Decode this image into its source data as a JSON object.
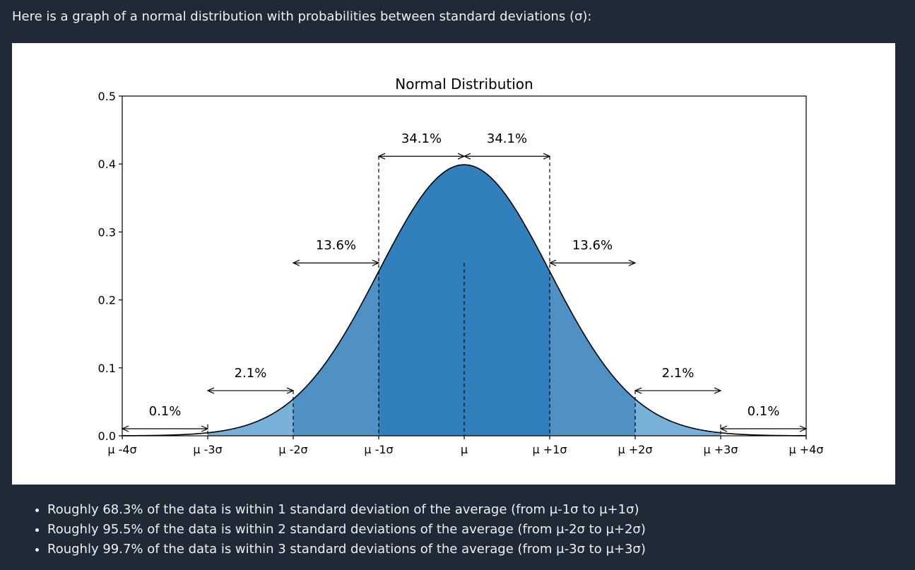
{
  "intro": {
    "text": "Here is a graph of a normal distribution with probabilities between standard deviations (σ):"
  },
  "chart_data": {
    "type": "area",
    "title": "Normal Distribution",
    "xlabel": "",
    "ylabel": "",
    "distribution": "standard normal density",
    "xlim": [
      -4,
      4
    ],
    "ylim": [
      0,
      0.5
    ],
    "y_ticks": [
      0.0,
      0.1,
      0.2,
      0.3,
      0.4,
      0.5
    ],
    "y_tick_labels": [
      "0.0",
      "0.1",
      "0.2",
      "0.3",
      "0.4",
      "0.5"
    ],
    "x_ticks": [
      -4,
      -3,
      -2,
      -1,
      0,
      1,
      2,
      3,
      4
    ],
    "x_tick_labels": [
      "μ -4σ",
      "μ -3σ",
      "μ -2σ",
      "μ -1σ",
      "μ",
      "μ +1σ",
      "μ +2σ",
      "μ +3σ",
      "μ +4σ"
    ],
    "grid": false,
    "legend": "none",
    "regions": [
      {
        "from": -3,
        "to": -2,
        "label": "2.1%",
        "color": "#79b0d8"
      },
      {
        "from": -2,
        "to": -1,
        "label": "13.6%",
        "color": "#4f91c5"
      },
      {
        "from": -1,
        "to": 0,
        "label": "34.1%",
        "color": "#3180bb"
      },
      {
        "from": 0,
        "to": 1,
        "label": "34.1%",
        "color": "#3180bb"
      },
      {
        "from": 1,
        "to": 2,
        "label": "13.6%",
        "color": "#4f91c5"
      },
      {
        "from": 2,
        "to": 3,
        "label": "2.1%",
        "color": "#79b0d8"
      }
    ],
    "tail_annotations": [
      {
        "from": -4,
        "to": -3,
        "label": "0.1%"
      },
      {
        "from": 3,
        "to": 4,
        "label": "0.1%"
      }
    ],
    "dashed_lines_at": [
      -3,
      -2,
      -1,
      0,
      1,
      2,
      3
    ],
    "curve_color": "#000000"
  },
  "bullets": [
    "Roughly 68.3% of the data is within 1 standard deviation of the average (from μ-1σ to μ+1σ)",
    "Roughly 95.5% of the data is within 2 standard deviations of the average (from μ-2σ to μ+2σ)",
    "Roughly 99.7% of the data is within 3 standard deviations of the average (from μ-3σ to μ+3σ)"
  ]
}
